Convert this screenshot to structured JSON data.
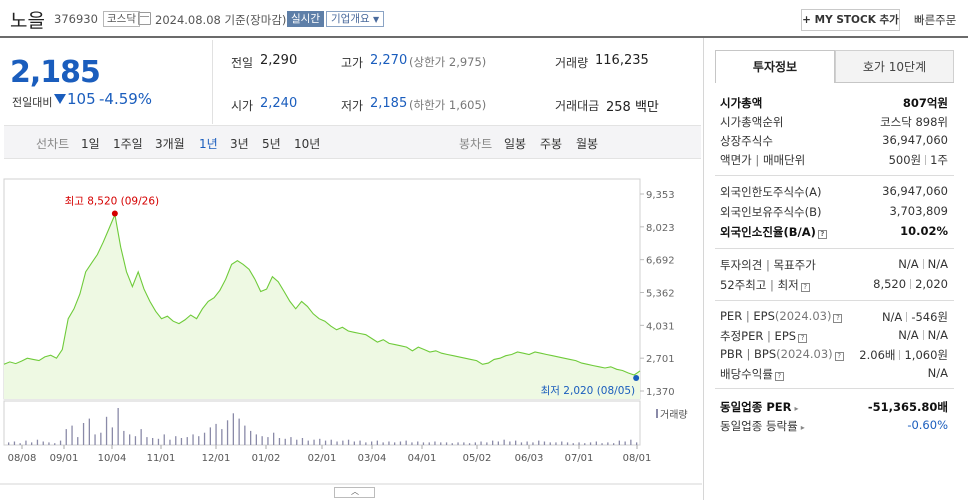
{
  "header": {
    "name": "노을",
    "code": "376930",
    "market": "코스닥",
    "date": "2024.08.08",
    "date_suffix": "기준(장마감)",
    "realtime": "실시간",
    "company_info": "기업개요",
    "my_stock": "+ MY STOCK 추가",
    "quick_order": "빠른주문"
  },
  "price": {
    "current": "2,185",
    "change_label": "전일대비",
    "change": "105",
    "change_pct": "-4.59%",
    "colors": {
      "down": "#1a5dbd"
    }
  },
  "quote": {
    "prev_label": "전일",
    "prev": "2,290",
    "high_label": "고가",
    "high": "2,270",
    "upper_limit": "(상한가 2,975)",
    "volume_label": "거래량",
    "volume": "116,235",
    "open_label": "시가",
    "open": "2,240",
    "low_label": "저가",
    "low": "2,185",
    "lower_limit": "(하한가 1,605)",
    "amount_label": "거래대금",
    "amount": "258 백만"
  },
  "periods": {
    "line_label": "선차트",
    "items": [
      "1일",
      "1주일",
      "3개월",
      "1년",
      "3년",
      "5년",
      "10년"
    ],
    "active": "1년",
    "candle_label": "봉차트",
    "candle_items": [
      "일봉",
      "주봉",
      "월봉"
    ]
  },
  "chart_data": {
    "type": "area",
    "y_ticks": [
      "9,353",
      "8,023",
      "6,692",
      "5,362",
      "4,031",
      "2,701",
      "1,370"
    ],
    "ylim": [
      1370,
      9353
    ],
    "x_ticks": [
      "08/08",
      "09/01",
      "10/04",
      "11/01",
      "12/01",
      "01/02",
      "02/01",
      "03/04",
      "04/01",
      "05/02",
      "06/03",
      "07/01",
      "08/01"
    ],
    "high_annotation": "최고 8,520 (09/26)",
    "low_annotation": "최저 2,020 (08/05)",
    "volume_label": "거래량",
    "colors": {
      "line": "#6fcb3a",
      "fill": "#eef9e3",
      "high": "#d50000",
      "low": "#1a5dbd",
      "volume": "#8a8aa8"
    },
    "series": [
      {
        "values": [
          2450,
          2550,
          2480,
          2580,
          2700,
          2650,
          2600,
          2750,
          2820,
          2700,
          3050,
          4300,
          4700,
          5300,
          6200,
          6550,
          6900,
          7400,
          7950,
          8520,
          7200,
          6200,
          5600,
          6200,
          5500,
          5000,
          4600,
          4300,
          4400,
          4200,
          4100,
          4250,
          4450,
          4300,
          4700,
          5000,
          5150,
          5450,
          5900,
          6500,
          6650,
          6500,
          6300,
          5900,
          5400,
          5500,
          6000,
          5800,
          5400,
          5000,
          4700,
          5000,
          4800,
          4500,
          4300,
          4200,
          4000,
          3850,
          3950,
          3800,
          3750,
          3700,
          3650,
          3500,
          3350,
          3450,
          3300,
          3250,
          3200,
          3150,
          3000,
          3150,
          3050,
          2950,
          3000,
          2900,
          2850,
          2800,
          2750,
          2700,
          2650,
          2600,
          2450,
          2500,
          2650,
          2700,
          2800,
          2850,
          2950,
          2900,
          2850,
          2950,
          2900,
          2850,
          2800,
          2750,
          2700,
          2650,
          2600,
          2500,
          2450,
          2400,
          2350,
          2300,
          2350,
          2250,
          2200,
          2100,
          2020,
          2185
        ]
      }
    ],
    "volume": [
      3,
      4,
      2,
      5,
      3,
      6,
      4,
      3,
      2,
      5,
      18,
      22,
      9,
      25,
      30,
      12,
      14,
      32,
      20,
      42,
      16,
      12,
      10,
      18,
      9,
      8,
      7,
      12,
      6,
      10,
      8,
      9,
      12,
      10,
      14,
      20,
      24,
      18,
      28,
      36,
      30,
      22,
      16,
      12,
      10,
      9,
      14,
      8,
      7,
      9,
      6,
      8,
      5,
      6,
      7,
      5,
      6,
      4,
      5,
      6,
      4,
      5,
      3,
      4,
      5,
      3,
      4,
      3,
      4,
      5,
      3,
      4,
      3,
      3,
      4,
      3,
      3,
      2,
      3,
      3,
      2,
      3,
      4,
      3,
      5,
      4,
      6,
      4,
      5,
      3,
      4,
      3,
      5,
      4,
      3,
      3,
      4,
      3,
      2,
      3,
      2,
      3,
      4,
      2,
      3,
      2,
      5,
      4,
      6,
      3
    ]
  },
  "right_panel": {
    "tabs": [
      "투자정보",
      "호가 10단계"
    ],
    "market_cap_label": "시가총액",
    "market_cap": "807억원",
    "cap_rank_label": "시가총액순위",
    "cap_rank": "코스닥 898위",
    "shares_label": "상장주식수",
    "shares": "36,947,060",
    "par_label": "액면가",
    "unit_label": "매매단위",
    "par": "500원",
    "unit": "1주",
    "foreign_limit_label": "외국인한도주식수(A)",
    "foreign_limit": "36,947,060",
    "foreign_hold_label": "외국인보유주식수(B)",
    "foreign_hold": "3,703,809",
    "foreign_rate_label": "외국인소진율(B/A)",
    "foreign_rate": "10.02%",
    "opinion_label": "투자의견",
    "target_label": "목표주가",
    "opinion": "N/A",
    "target": "N/A",
    "w52_high_label": "52주최고",
    "w52_low_label": "최저",
    "w52_high": "8,520",
    "w52_low": "2,020",
    "per_label": "PER",
    "eps_label": "EPS",
    "eps_period": "(2024.03)",
    "per": "N/A",
    "eps": "-546원",
    "est_per_label": "추정PER",
    "est_eps_label": "EPS",
    "est_per": "N/A",
    "est_eps": "N/A",
    "pbr_label": "PBR",
    "bps_label": "BPS",
    "bps_period": "(2024.03)",
    "pbr": "2.06배",
    "bps": "1,060원",
    "div_label": "배당수익률",
    "div": "N/A",
    "sector_per_label": "동일업종 PER",
    "sector_per": "-51,365.80배",
    "sector_rate_label": "동일업종 등락률",
    "sector_rate": "-0.60%"
  }
}
